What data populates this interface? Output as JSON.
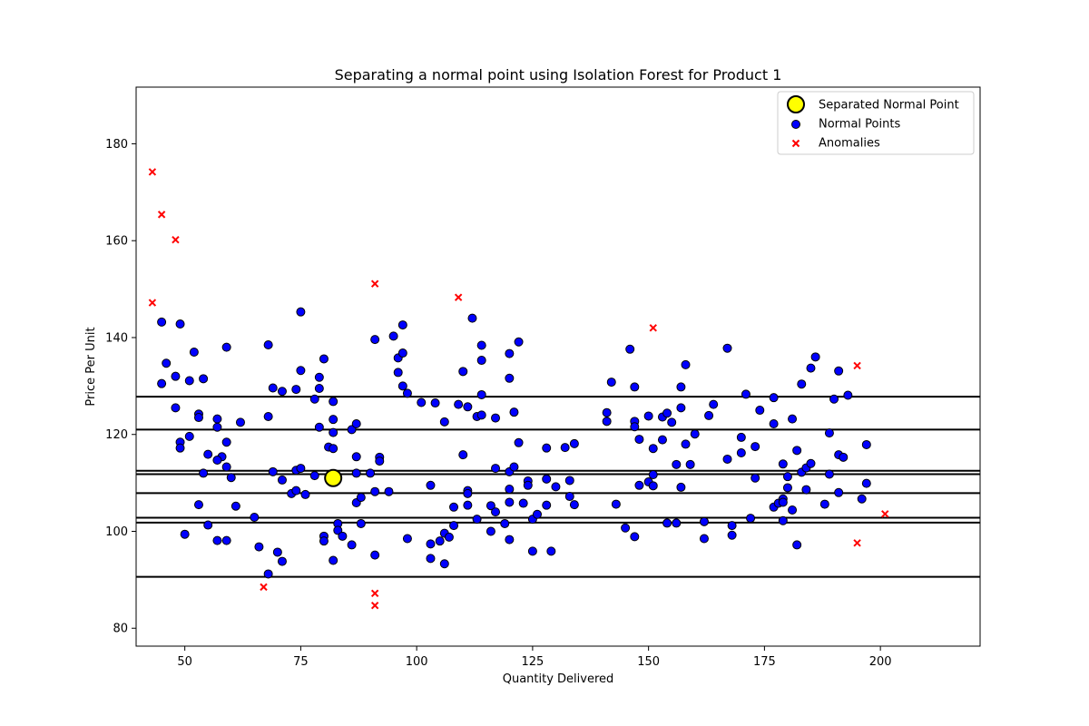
{
  "chart_data": {
    "type": "scatter",
    "title": "Separating a normal point using Isolation Forest for Product 1",
    "xlabel": "Quantity Delivered",
    "ylabel": "Price Per Unit",
    "xlim": [
      39.5,
      221.5
    ],
    "ylim": [
      76.3,
      191.7
    ],
    "xticks": [
      50,
      75,
      100,
      125,
      150,
      175,
      200
    ],
    "yticks": [
      80,
      100,
      120,
      140,
      160,
      180
    ],
    "grid": false,
    "legend_position": "upper-right",
    "colors": {
      "normal": "#0000ff",
      "anomaly": "#ff0000",
      "separated": "#ffff00",
      "split_line": "#000000"
    },
    "horizontal_splits": [
      127.8,
      121.0,
      112.5,
      111.8,
      107.9,
      102.8,
      101.8,
      90.6
    ],
    "series": [
      {
        "name": "Separated Normal Point",
        "marker": "large-circle",
        "points": [
          [
            82,
            111
          ]
        ]
      },
      {
        "name": "Normal Points",
        "marker": "circle",
        "points": [
          [
            45,
            143.2
          ],
          [
            49,
            142.8
          ],
          [
            46,
            134.7
          ],
          [
            52,
            137
          ],
          [
            45,
            130.5
          ],
          [
            48,
            132
          ],
          [
            51,
            131.1
          ],
          [
            54,
            131.5
          ],
          [
            48,
            125.5
          ],
          [
            53,
            124.2
          ],
          [
            53,
            123.5
          ],
          [
            49,
            118.4
          ],
          [
            49,
            117.2
          ],
          [
            51,
            119.6
          ],
          [
            50,
            99.4
          ],
          [
            53,
            105.5
          ],
          [
            54,
            112
          ],
          [
            55,
            115.9
          ],
          [
            55,
            101.3
          ],
          [
            57,
            123.2
          ],
          [
            57,
            121.5
          ],
          [
            58,
            115.4
          ],
          [
            57,
            114.7
          ],
          [
            59,
            118.4
          ],
          [
            59,
            113.3
          ],
          [
            60,
            111.1
          ],
          [
            57,
            98.1
          ],
          [
            59,
            98.1
          ],
          [
            59,
            138
          ],
          [
            62,
            122.5
          ],
          [
            61,
            105.2
          ],
          [
            65,
            102.9
          ],
          [
            66,
            96.8
          ],
          [
            68,
            91.2
          ],
          [
            68,
            138.5
          ],
          [
            69,
            129.6
          ],
          [
            68,
            123.7
          ],
          [
            69,
            112.3
          ],
          [
            71,
            110.6
          ],
          [
            70,
            95.7
          ],
          [
            71,
            93.8
          ],
          [
            71,
            128.9
          ],
          [
            73,
            107.8
          ],
          [
            74,
            129.3
          ],
          [
            74,
            112.6
          ],
          [
            74,
            108.4
          ],
          [
            75,
            113
          ],
          [
            76,
            107.6
          ],
          [
            75,
            145.3
          ],
          [
            75,
            133.2
          ],
          [
            78,
            127.3
          ],
          [
            79,
            131.8
          ],
          [
            79,
            129.5
          ],
          [
            79,
            121.5
          ],
          [
            78,
            111.5
          ],
          [
            80,
            135.6
          ],
          [
            80,
            99
          ],
          [
            80,
            98
          ],
          [
            82,
            126.8
          ],
          [
            82,
            123.1
          ],
          [
            81,
            117.4
          ],
          [
            82,
            117.1
          ],
          [
            82,
            120.4
          ],
          [
            82,
            94
          ],
          [
            83,
            101.6
          ],
          [
            83,
            100.2
          ],
          [
            84,
            99
          ],
          [
            86,
            97.2
          ],
          [
            86,
            121
          ],
          [
            87,
            122.2
          ],
          [
            87,
            115.4
          ],
          [
            87,
            105.9
          ],
          [
            88,
            107
          ],
          [
            88,
            101.6
          ],
          [
            90,
            112
          ],
          [
            91,
            139.6
          ],
          [
            91,
            108.2
          ],
          [
            92,
            115.3
          ],
          [
            92,
            114.5
          ],
          [
            91,
            95.1
          ],
          [
            87,
            112
          ],
          [
            94,
            108.2
          ],
          [
            95,
            140.3
          ],
          [
            96,
            135.8
          ],
          [
            97,
            136.8
          ],
          [
            97,
            142.6
          ],
          [
            96,
            132.8
          ],
          [
            97,
            130
          ],
          [
            98,
            128.5
          ],
          [
            98,
            98.5
          ],
          [
            101,
            126.6
          ],
          [
            104,
            126.5
          ],
          [
            103,
            109.5
          ],
          [
            103,
            97.4
          ],
          [
            103,
            94.4
          ],
          [
            105,
            98
          ],
          [
            106,
            99.6
          ],
          [
            106,
            93.3
          ],
          [
            106,
            122.6
          ],
          [
            107,
            98.8
          ],
          [
            108,
            101.2
          ],
          [
            108,
            105
          ],
          [
            109,
            126.2
          ],
          [
            110,
            133
          ],
          [
            110,
            115.8
          ],
          [
            111,
            125.7
          ],
          [
            111,
            108.4
          ],
          [
            111,
            107.8
          ],
          [
            111,
            105.4
          ],
          [
            112,
            144
          ],
          [
            113,
            123.7
          ],
          [
            113,
            102.5
          ],
          [
            114,
            138.4
          ],
          [
            114,
            135.3
          ],
          [
            114,
            128.2
          ],
          [
            114,
            124
          ],
          [
            116,
            105.3
          ],
          [
            116,
            100
          ],
          [
            117,
            123.4
          ],
          [
            117,
            113
          ],
          [
            117,
            104
          ],
          [
            119,
            101.6
          ],
          [
            120,
            136.7
          ],
          [
            120,
            131.6
          ],
          [
            120,
            112.3
          ],
          [
            120,
            108.7
          ],
          [
            120,
            106
          ],
          [
            120,
            98.3
          ],
          [
            121,
            124.6
          ],
          [
            121,
            113.3
          ],
          [
            122,
            139.1
          ],
          [
            122,
            118.3
          ],
          [
            123,
            105.8
          ],
          [
            124,
            110.4
          ],
          [
            124,
            109.5
          ],
          [
            125,
            102.5
          ],
          [
            125,
            95.9
          ],
          [
            126,
            103.5
          ],
          [
            128,
            117.2
          ],
          [
            128,
            110.8
          ],
          [
            128,
            105.4
          ],
          [
            129,
            95.9
          ],
          [
            130,
            109.2
          ],
          [
            132,
            117.3
          ],
          [
            133,
            110.5
          ],
          [
            133,
            107.2
          ],
          [
            134,
            105.5
          ],
          [
            134,
            118.1
          ],
          [
            141,
            124.5
          ],
          [
            141,
            122.7
          ],
          [
            142,
            130.8
          ],
          [
            143,
            105.6
          ],
          [
            145,
            100.7
          ],
          [
            146,
            137.6
          ],
          [
            147,
            129.8
          ],
          [
            147,
            122.7
          ],
          [
            147,
            121.6
          ],
          [
            147,
            98.9
          ],
          [
            148,
            119
          ],
          [
            148,
            109.5
          ],
          [
            150,
            123.8
          ],
          [
            150,
            110.2
          ],
          [
            151,
            111.7
          ],
          [
            151,
            109.4
          ],
          [
            151,
            117.1
          ],
          [
            153,
            123.6
          ],
          [
            153,
            118.9
          ],
          [
            154,
            124.4
          ],
          [
            154,
            101.7
          ],
          [
            155,
            122.5
          ],
          [
            156,
            113.8
          ],
          [
            156,
            101.7
          ],
          [
            157,
            129.8
          ],
          [
            157,
            125.5
          ],
          [
            157,
            109.1
          ],
          [
            158,
            134.4
          ],
          [
            158,
            118
          ],
          [
            159,
            113.8
          ],
          [
            160,
            120.1
          ],
          [
            162,
            102
          ],
          [
            162,
            98.5
          ],
          [
            163,
            123.9
          ],
          [
            164,
            126.2
          ],
          [
            167,
            137.8
          ],
          [
            167,
            114.9
          ],
          [
            168,
            101.2
          ],
          [
            168,
            99.2
          ],
          [
            170,
            119.4
          ],
          [
            170,
            116.2
          ],
          [
            171,
            128.3
          ],
          [
            172,
            102.7
          ],
          [
            173,
            117.5
          ],
          [
            173,
            111
          ],
          [
            174,
            125
          ],
          [
            177,
            127.6
          ],
          [
            177,
            122.2
          ],
          [
            177,
            105
          ],
          [
            178,
            105.8
          ],
          [
            179,
            113.9
          ],
          [
            179,
            106.7
          ],
          [
            179,
            106
          ],
          [
            179,
            102.2
          ],
          [
            180,
            111.3
          ],
          [
            180,
            109
          ],
          [
            181,
            123.2
          ],
          [
            181,
            104.4
          ],
          [
            182,
            116.7
          ],
          [
            182,
            97.2
          ],
          [
            183,
            130.4
          ],
          [
            183,
            112.2
          ],
          [
            184,
            113.1
          ],
          [
            184,
            108.6
          ],
          [
            185,
            133.7
          ],
          [
            185,
            114
          ],
          [
            186,
            136
          ],
          [
            188,
            105.6
          ],
          [
            189,
            120.3
          ],
          [
            189,
            111.8
          ],
          [
            190,
            127.3
          ],
          [
            191,
            133.1
          ],
          [
            191,
            115.8
          ],
          [
            191,
            108
          ],
          [
            192,
            115.3
          ],
          [
            193,
            128.1
          ],
          [
            196,
            106.7
          ],
          [
            197,
            117.9
          ],
          [
            197,
            109.9
          ]
        ]
      },
      {
        "name": "Anomalies",
        "marker": "x",
        "points": [
          [
            43,
            174.2
          ],
          [
            45,
            165.4
          ],
          [
            48,
            160.2
          ],
          [
            43,
            147.2
          ],
          [
            67,
            88.5
          ],
          [
            91,
            151.1
          ],
          [
            91,
            87.2
          ],
          [
            91,
            84.7
          ],
          [
            109,
            148.3
          ],
          [
            151,
            142
          ],
          [
            195,
            134.2
          ],
          [
            195,
            97.6
          ],
          [
            201,
            103.6
          ]
        ]
      }
    ]
  }
}
